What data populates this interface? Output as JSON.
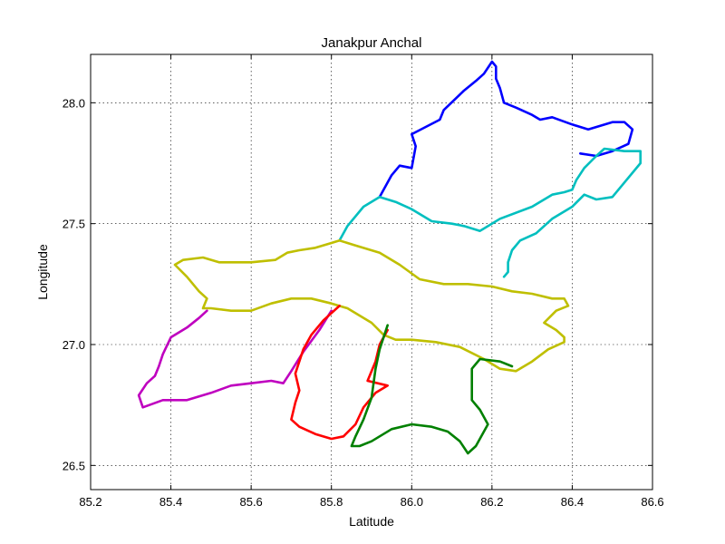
{
  "chart_data": {
    "type": "line",
    "title": "Janakpur Anchal",
    "xlabel": "Latitude",
    "ylabel": "Longitude",
    "xlim": [
      85.2,
      86.6
    ],
    "ylim": [
      26.4,
      28.2
    ],
    "x_ticks": [
      85.2,
      85.4,
      85.6,
      85.8,
      86.0,
      86.2,
      86.4,
      86.6
    ],
    "x_tick_labels": [
      "85.2",
      "85.4",
      "85.6",
      "85.8",
      "86.0",
      "86.2",
      "86.4",
      "86.6"
    ],
    "y_ticks": [
      26.5,
      27.0,
      27.5,
      28.0
    ],
    "y_tick_labels": [
      "26.5",
      "27.0",
      "27.5",
      "28.0"
    ],
    "grid": true,
    "series": [
      {
        "color": "#0000ff",
        "x": [
          85.92,
          85.95,
          85.97,
          86.0,
          86.01,
          86.0,
          86.07,
          86.08,
          86.13,
          86.16,
          86.18,
          86.2,
          86.21,
          86.21,
          86.22,
          86.23,
          86.26,
          86.3,
          86.32,
          86.35,
          86.4,
          86.44,
          86.5,
          86.53,
          86.55,
          86.54,
          86.5,
          86.46,
          86.42
        ],
        "y": [
          27.61,
          27.7,
          27.74,
          27.73,
          27.82,
          27.87,
          27.93,
          27.97,
          28.05,
          28.09,
          28.12,
          28.17,
          28.15,
          28.1,
          28.06,
          28.0,
          27.98,
          27.95,
          27.93,
          27.94,
          27.91,
          27.89,
          27.92,
          27.92,
          27.89,
          27.83,
          27.8,
          27.78,
          27.79
        ]
      },
      {
        "color": "#00bfbf",
        "x": [
          85.82,
          85.84,
          85.88,
          85.92,
          85.96,
          86.0,
          86.05,
          86.1,
          86.13,
          86.17,
          86.22,
          86.3,
          86.35,
          86.38,
          86.4,
          86.41,
          86.43,
          86.46,
          86.48,
          86.53,
          86.57,
          86.57,
          86.53,
          86.5,
          86.46,
          86.43,
          86.4,
          86.35,
          86.31,
          86.27,
          86.25,
          86.24,
          86.24,
          86.23
        ],
        "y": [
          27.43,
          27.49,
          27.57,
          27.61,
          27.59,
          27.56,
          27.51,
          27.5,
          27.49,
          27.47,
          27.52,
          27.57,
          27.62,
          27.63,
          27.64,
          27.68,
          27.73,
          27.78,
          27.81,
          27.8,
          27.8,
          27.75,
          27.67,
          27.61,
          27.6,
          27.62,
          27.57,
          27.52,
          27.46,
          27.43,
          27.39,
          27.34,
          27.3,
          27.28
        ]
      },
      {
        "color": "#bfbf00",
        "x": [
          85.41,
          85.43,
          85.48,
          85.52,
          85.6,
          85.66,
          85.69,
          85.72,
          85.76,
          85.8,
          85.82,
          85.86,
          85.92,
          85.97,
          86.02,
          86.08,
          86.14,
          86.2,
          86.25,
          86.3,
          86.35,
          86.38,
          86.39,
          86.36,
          86.33,
          86.36,
          86.38,
          86.38,
          86.34,
          86.3,
          86.26,
          86.22,
          86.18,
          86.12,
          86.06,
          86.0,
          85.96,
          85.93,
          85.9,
          85.87,
          85.84,
          85.8,
          85.75,
          85.7,
          85.65,
          85.6,
          85.55,
          85.5,
          85.48,
          85.49,
          85.47,
          85.44,
          85.41
        ],
        "y": [
          27.33,
          27.35,
          27.36,
          27.34,
          27.34,
          27.35,
          27.38,
          27.39,
          27.4,
          27.42,
          27.43,
          27.41,
          27.38,
          27.33,
          27.27,
          27.25,
          27.25,
          27.24,
          27.22,
          27.21,
          27.19,
          27.19,
          27.16,
          27.14,
          27.09,
          27.06,
          27.03,
          27.01,
          26.98,
          26.93,
          26.89,
          26.9,
          26.94,
          26.99,
          27.01,
          27.02,
          27.02,
          27.04,
          27.09,
          27.12,
          27.15,
          27.17,
          27.19,
          27.19,
          27.17,
          27.14,
          27.14,
          27.15,
          27.15,
          27.19,
          27.22,
          27.28,
          27.33
        ]
      },
      {
        "color": "#bf00bf",
        "x": [
          85.8,
          85.77,
          85.73,
          85.7,
          85.68,
          85.65,
          85.6,
          85.55,
          85.5,
          85.44,
          85.38,
          85.33,
          85.32,
          85.34,
          85.36,
          85.37,
          85.38,
          85.4,
          85.44,
          85.47,
          85.49
        ],
        "y": [
          27.14,
          27.06,
          26.97,
          26.89,
          26.84,
          26.85,
          26.84,
          26.83,
          26.8,
          26.77,
          26.77,
          26.74,
          26.79,
          26.84,
          26.87,
          26.91,
          26.96,
          27.03,
          27.07,
          27.11,
          27.14
        ]
      },
      {
        "color": "#ff0000",
        "x": [
          85.82,
          85.78,
          85.75,
          85.73,
          85.71,
          85.72,
          85.71,
          85.7,
          85.72,
          85.76,
          85.8,
          85.83,
          85.86,
          85.88,
          85.91,
          85.94,
          85.89,
          85.91,
          85.92,
          85.94
        ],
        "y": [
          27.16,
          27.1,
          27.04,
          26.98,
          26.88,
          26.81,
          26.76,
          26.69,
          26.66,
          26.63,
          26.61,
          26.62,
          26.67,
          26.74,
          26.8,
          26.83,
          26.85,
          26.93,
          27.0,
          27.06
        ]
      },
      {
        "color": "#008000",
        "x": [
          85.94,
          85.92,
          85.91,
          85.9,
          85.88,
          85.86,
          85.85,
          85.87,
          85.9,
          85.95,
          86.0,
          86.05,
          86.09,
          86.12,
          86.14,
          86.16,
          86.19,
          86.17,
          86.15,
          86.15,
          86.17,
          86.22,
          86.25
        ],
        "y": [
          27.08,
          26.98,
          26.9,
          26.78,
          26.69,
          26.62,
          26.58,
          26.58,
          26.6,
          26.65,
          26.67,
          26.66,
          26.64,
          26.6,
          26.55,
          26.58,
          26.67,
          26.73,
          26.77,
          26.9,
          26.94,
          26.93,
          26.91
        ]
      }
    ]
  }
}
